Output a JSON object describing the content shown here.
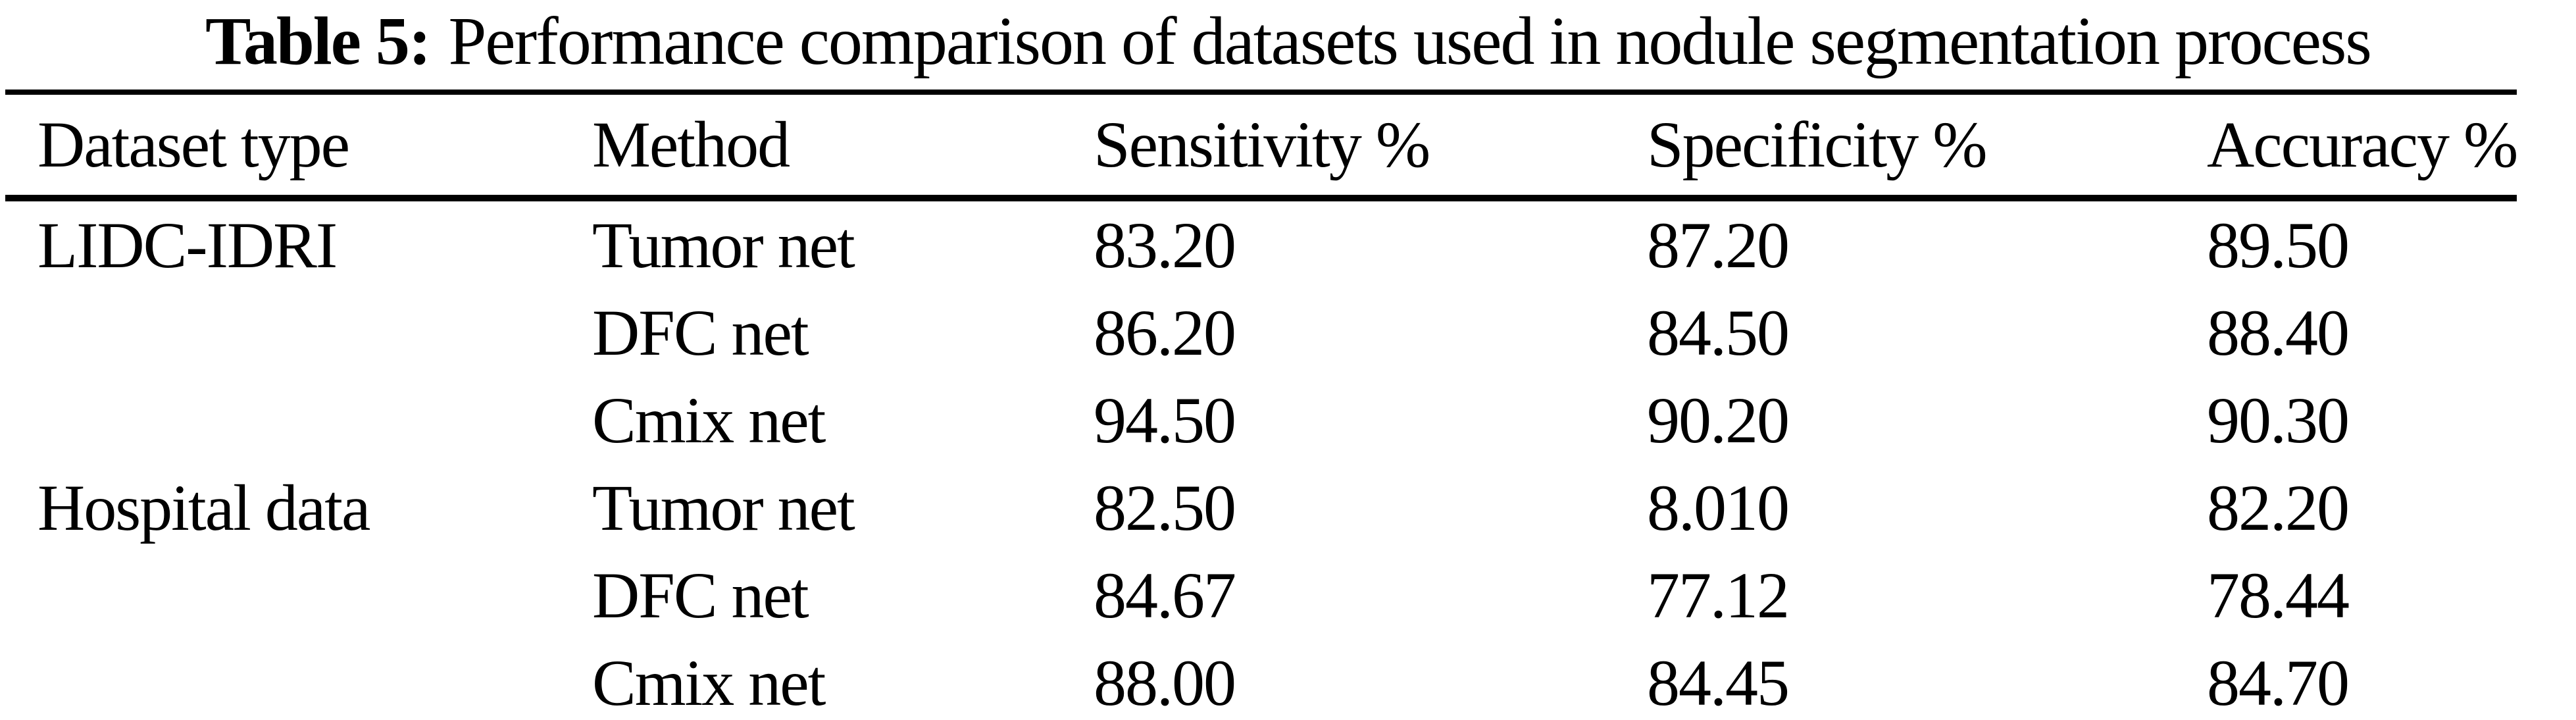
{
  "page": {
    "background": "#ffffff",
    "text_color": "#000000",
    "rule_color": "#000000"
  },
  "table": {
    "caption": {
      "label": "Table 5:",
      "text": "Performance comparison of datasets used in nodule segmentation process"
    },
    "columns": [
      "Dataset type",
      "Method",
      "Sensitivity %",
      "Specificity %",
      "Accuracy %"
    ],
    "rows": [
      {
        "dataset": "LIDC-IDRI",
        "method": "Tumor net",
        "sensitivity": "83.20",
        "specificity": "87.20",
        "accuracy": "89.50"
      },
      {
        "dataset": "",
        "method": "DFC net",
        "sensitivity": "86.20",
        "specificity": "84.50",
        "accuracy": "88.40"
      },
      {
        "dataset": "",
        "method": "Cmix net",
        "sensitivity": "94.50",
        "specificity": "90.20",
        "accuracy": "90.30"
      },
      {
        "dataset": "Hospital data",
        "method": "Tumor net",
        "sensitivity": "82.50",
        "specificity": "8.010",
        "accuracy": "82.20"
      },
      {
        "dataset": "",
        "method": "DFC net",
        "sensitivity": "84.67",
        "specificity": "77.12",
        "accuracy": "78.44"
      },
      {
        "dataset": "",
        "method": "Cmix net",
        "sensitivity": "88.00",
        "specificity": "84.45",
        "accuracy": "84.70"
      }
    ]
  },
  "chart_data": {
    "type": "table",
    "title": "Table 5: Performance comparison of datasets used in nodule segmentation process",
    "columns": [
      "Dataset type",
      "Method",
      "Sensitivity %",
      "Specificity %",
      "Accuracy %"
    ],
    "rows": [
      [
        "LIDC-IDRI",
        "Tumor net",
        83.2,
        87.2,
        89.5
      ],
      [
        "LIDC-IDRI",
        "DFC net",
        86.2,
        84.5,
        88.4
      ],
      [
        "LIDC-IDRI",
        "Cmix net",
        94.5,
        90.2,
        90.3
      ],
      [
        "Hospital data",
        "Tumor net",
        82.5,
        8.01,
        82.2
      ],
      [
        "Hospital data",
        "DFC net",
        84.67,
        77.12,
        78.44
      ],
      [
        "Hospital data",
        "Cmix net",
        88.0,
        84.45,
        84.7
      ]
    ]
  }
}
